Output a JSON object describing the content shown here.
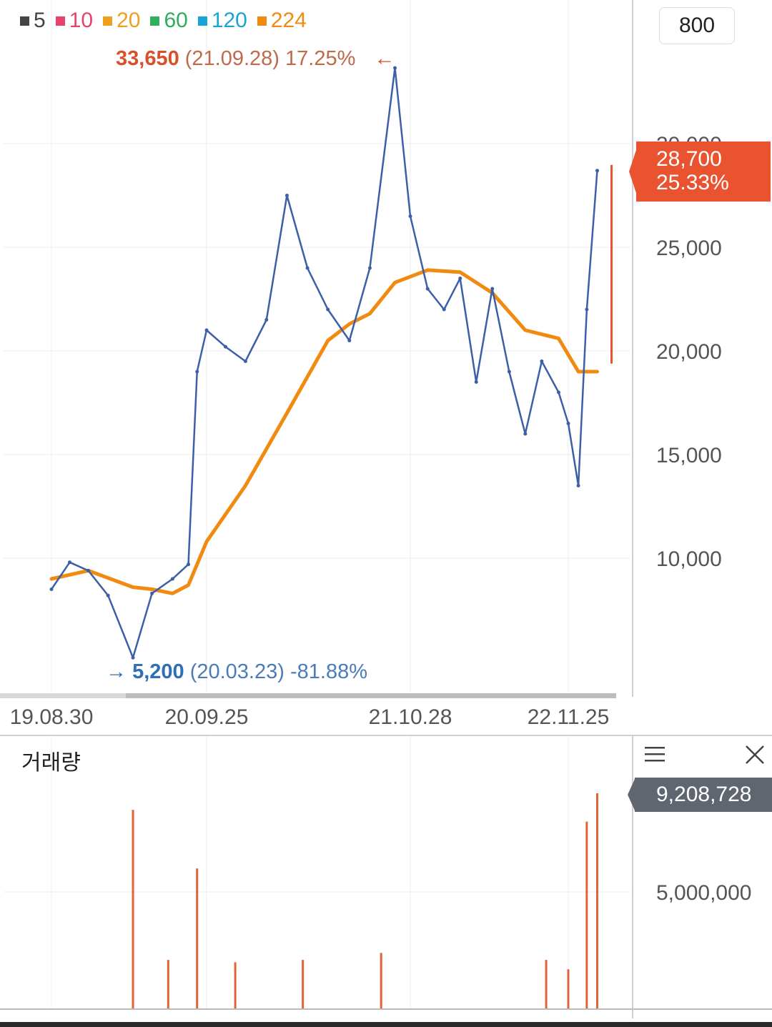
{
  "legend": [
    {
      "label": "5",
      "color": "#444444"
    },
    {
      "label": "10",
      "color": "#e8436b"
    },
    {
      "label": "20",
      "color": "#f0a020"
    },
    {
      "label": "60",
      "color": "#2fae5e"
    },
    {
      "label": "120",
      "color": "#1aa3d6"
    },
    {
      "label": "224",
      "color": "#f08a10"
    }
  ],
  "period_button": "800",
  "high_annotation": {
    "price": "33,650",
    "date": "(21.09.28)",
    "pct": "17.25%",
    "arrow": "←"
  },
  "low_annotation": {
    "arrow": "→",
    "price": "5,200",
    "date": "(20.03.23)",
    "pct": "-81.88%"
  },
  "current_price": {
    "price": "28,700",
    "pct": "25.33%"
  },
  "volume_panel": {
    "title": "거래량",
    "current_volume": "9,208,728",
    "menu_icon": "menu-icon",
    "close_icon": "close-icon"
  },
  "chart_data": [
    {
      "type": "line",
      "x_ticks": [
        "19.08.30",
        "20.09.25",
        "21.10.28",
        "22.11.25"
      ],
      "y_ticks": [
        "10,000",
        "15,000",
        "20,000",
        "25,000",
        "30,000"
      ],
      "ylim": [
        3000,
        33800
      ],
      "grid": true,
      "series": [
        {
          "name": "price",
          "color": "#3d5fa8",
          "x": [
            "19.08.30",
            "19.10.15",
            "19.12.01",
            "20.01.20",
            "20.03.23",
            "20.05.10",
            "20.07.01",
            "20.08.10",
            "20.09.01",
            "20.09.25",
            "20.11.01",
            "20.12.10",
            "21.01.20",
            "21.03.01",
            "21.04.10",
            "21.05.20",
            "21.07.01",
            "21.08.10",
            "21.09.28",
            "21.10.28",
            "21.12.10",
            "22.01.20",
            "22.03.01",
            "22.04.10",
            "22.05.20",
            "22.07.01",
            "22.08.10",
            "22.09.20",
            "22.11.01",
            "22.11.25",
            "22.12.20",
            "23.01.10",
            "23.02.05"
          ],
          "y": [
            8500,
            9800,
            9400,
            8200,
            5200,
            8300,
            9000,
            9700,
            19000,
            21000,
            20200,
            19500,
            21500,
            27500,
            24000,
            22000,
            20500,
            24000,
            33650,
            26500,
            23000,
            22000,
            23500,
            18500,
            23000,
            19000,
            16000,
            19500,
            18000,
            16500,
            13500,
            22000,
            28700
          ]
        },
        {
          "name": "224",
          "color": "#f08a10",
          "x": [
            "19.08.30",
            "19.12.01",
            "20.03.23",
            "20.05.10",
            "20.07.01",
            "20.08.10",
            "20.09.25",
            "20.12.10",
            "21.03.01",
            "21.05.20",
            "21.07.01",
            "21.08.10",
            "21.09.28",
            "21.12.10",
            "22.03.01",
            "22.05.20",
            "22.08.10",
            "22.11.01",
            "22.12.20",
            "23.02.05"
          ],
          "y": [
            9000,
            9400,
            8600,
            8500,
            8300,
            8700,
            10800,
            13500,
            17000,
            20500,
            21300,
            21800,
            23300,
            23900,
            23800,
            22800,
            21000,
            20600,
            19000,
            19000
          ]
        }
      ]
    },
    {
      "type": "bar",
      "title": "거래량",
      "y_ticks": [
        "5,000,000"
      ],
      "ylim": [
        0,
        10000000
      ],
      "spikes": [
        {
          "x": "20.03.23",
          "value": 8500000
        },
        {
          "x": "20.09.01",
          "value": 6000000
        },
        {
          "x": "20.06.20",
          "value": 2100000
        },
        {
          "x": "20.11.20",
          "value": 2000000
        },
        {
          "x": "21.04.01",
          "value": 2100000
        },
        {
          "x": "21.09.01",
          "value": 2400000
        },
        {
          "x": "22.10.01",
          "value": 2100000
        },
        {
          "x": "22.11.25",
          "value": 1700000
        },
        {
          "x": "23.01.10",
          "value": 8000000
        },
        {
          "x": "23.02.05",
          "value": 9208728
        }
      ]
    }
  ]
}
